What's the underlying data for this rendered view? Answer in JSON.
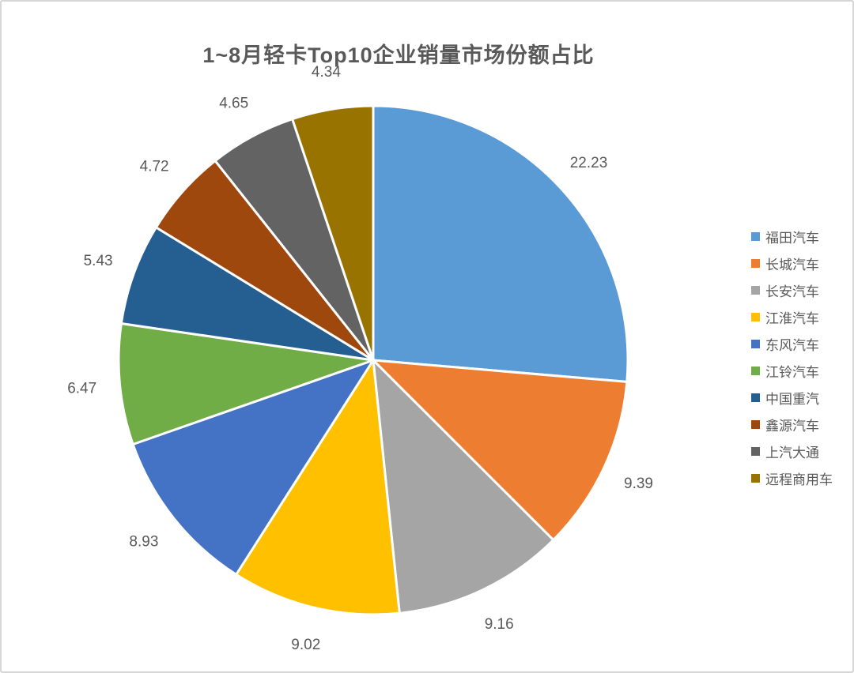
{
  "frame": {
    "background": "#ffffff",
    "border_color": "#d6d6d6"
  },
  "chart_data": {
    "type": "pie",
    "title": "1~8月轻卡Top10企业销量市场份额占比",
    "categories": [
      "福田汽车",
      "长城汽车",
      "长安汽车",
      "江淮汽车",
      "东风汽车",
      "江铃汽车",
      "中国重汽",
      "鑫源汽车",
      "上汽大通",
      "远程商用车"
    ],
    "values": [
      22.23,
      9.39,
      9.16,
      9.02,
      8.93,
      6.47,
      5.43,
      4.72,
      4.65,
      4.34
    ],
    "colors": [
      "#5B9BD5",
      "#ED7D31",
      "#A5A5A5",
      "#FFC000",
      "#4472C4",
      "#70AD47",
      "#255E91",
      "#9E480E",
      "#636363",
      "#997300"
    ],
    "data_labels": [
      "22.23",
      "9.39",
      "9.16",
      "9.02",
      "8.93",
      "6.47",
      "5.43",
      "4.72",
      "4.65",
      "4.34"
    ],
    "legend_position": "right",
    "label_placement": "outside-end",
    "start_angle_deg": 0,
    "direction": "clockwise",
    "title_color": "#595959",
    "label_color": "#595959",
    "slice_border_color": "#ffffff"
  }
}
